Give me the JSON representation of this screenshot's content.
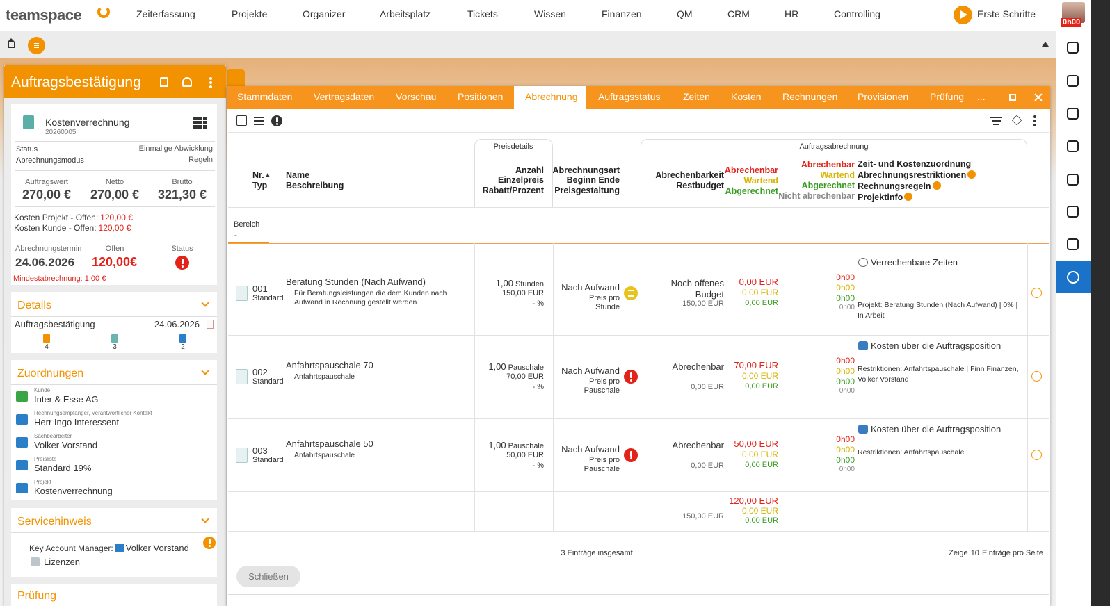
{
  "topnav": {
    "logo": "teamspace",
    "items": [
      "Zeiterfassung",
      "Projekte",
      "Organizer",
      "Arbeitsplatz",
      "Tickets",
      "Wissen",
      "Finanzen",
      "QM",
      "CRM",
      "HR",
      "Controlling"
    ],
    "start": "Erste Schritte",
    "timer": "0h00"
  },
  "left": {
    "title": "Auftragsbestätigung",
    "card": {
      "name": "Kostenverrechnung",
      "number": "20260005",
      "status_label": "Status",
      "status_value": "Einmalige Abwicklung",
      "mode_label": "Abrechnungsmodus",
      "mode_value": "Regeln",
      "amounts": [
        {
          "label": "Auftragswert",
          "value": "270,00 €"
        },
        {
          "label": "Netto",
          "value": "270,00 €"
        },
        {
          "label": "Brutto",
          "value": "321,30 €"
        }
      ],
      "costs_project_label": "Kosten Projekt - Offen:",
      "costs_project_value": "120,00 €",
      "costs_customer_label": "Kosten Kunde - Offen:",
      "costs_customer_value": "120,00 €",
      "term_label": "Abrechnungstermin",
      "term_value": "24.06.2026",
      "open_label": "Offen",
      "open_value": "120,00€",
      "state_label": "Status",
      "minimum": "Mindestabrechnung: 1,00 €"
    },
    "details": {
      "title": "Details",
      "doc": "Auftragsbestätigung",
      "date": "24.06.2026",
      "counts": [
        "4",
        "3",
        "2"
      ]
    },
    "assignments": {
      "title": "Zuordnungen",
      "items": [
        {
          "label": "Kunde",
          "value": "Inter & Esse AG"
        },
        {
          "label": "Rechnungsempfänger, Verantwortlicher Kontakt",
          "value": "Herr Ingo Interessent"
        },
        {
          "label": "Sachbearbeiter",
          "value": "Volker Vorstand"
        },
        {
          "label": "Preisliste",
          "value": "Standard 19%"
        },
        {
          "label": "Projekt",
          "value": "Kostenverrechnung"
        }
      ]
    },
    "service": {
      "title": "Servicehinweis",
      "kam_label": "Key Account Manager:",
      "kam_value": "Volker Vorstand",
      "licenses": "Lizenzen"
    },
    "next": "Prüfung"
  },
  "tabs": {
    "items": [
      "Stammdaten",
      "Vertragsdaten",
      "Vorschau",
      "Positionen",
      "Abrechnung",
      "Auftragsstatus",
      "Zeiten",
      "Kosten",
      "Rechnungen",
      "Provisionen",
      "Prüfung"
    ],
    "active": 4,
    "more": "..."
  },
  "table": {
    "header": {
      "nr": "Nr.",
      "typ": "Typ",
      "name": "Name",
      "desc": "Beschreibung",
      "price_group": "Preisdetails",
      "price_cols": [
        "Anzahl",
        "Einzelpreis",
        "Rabatt/Prozent"
      ],
      "billing_cols": [
        "Abrechnungsart",
        "Beginn Ende",
        "Preisgestaltung"
      ],
      "billing_group": "Auftragsabrechnung",
      "billability_cols": [
        "Abrechenbarkeit",
        "Restbudget"
      ],
      "amount_states": [
        "Abrechenbar",
        "Wartend",
        "Abgerechnet"
      ],
      "time_states": [
        "Abrechenbar",
        "Wartend",
        "Abgerechnet",
        "Nicht abrechenbar"
      ],
      "alloc_cols": [
        "Zeit- und Kostenzuordnung",
        "Abrechnungsrestriktionen",
        "Rechnungsregeln",
        "Projektinfo"
      ]
    },
    "filter": {
      "label": "Bereich",
      "value": "-"
    },
    "rows": [
      {
        "nr": "001",
        "typ": "Standard",
        "name": "Beratung Stunden (Nach Aufwand)",
        "desc": "Für Beratungsleistungen die dem Kunden nach Aufwand in Rechnung gestellt werden.",
        "qty": "1,00",
        "unit": "Stunden",
        "price": "150,00 EUR",
        "discount": "- %",
        "billing": "Nach Aufwand",
        "pricing": "Preis pro Stunde",
        "billability": "Noch offenes Budget",
        "budget": "150,00 EUR",
        "amounts": [
          "0,00 EUR",
          "0,00 EUR",
          "0,00 EUR"
        ],
        "times": [
          "0h00",
          "0h00",
          "0h00",
          "0h00"
        ],
        "alloc": "Verrechenbare Zeiten",
        "info": "Projekt: Beratung Stunden (Nach Aufwand) | 0% | In Arbeit"
      },
      {
        "nr": "002",
        "typ": "Standard",
        "name": "Anfahrtspauschale 70",
        "desc": "Anfahrtspauschale",
        "qty": "1,00",
        "unit": "Pauschale",
        "price": "70,00 EUR",
        "discount": "- %",
        "billing": "Nach Aufwand",
        "pricing": "Preis pro Pauschale",
        "billability": "Abrechenbar",
        "budget": "0,00 EUR",
        "amounts": [
          "70,00 EUR",
          "0,00 EUR",
          "0,00 EUR"
        ],
        "times": [
          "0h00",
          "0h00",
          "0h00",
          "0h00"
        ],
        "alloc": "Kosten über die Auftragsposition",
        "info": "Restriktionen: Anfahrtspauschale | Finn Finanzen, Volker Vorstand"
      },
      {
        "nr": "003",
        "typ": "Standard",
        "name": "Anfahrtspauschale 50",
        "desc": "Anfahrtspauschale",
        "qty": "1,00",
        "unit": "Pauschale",
        "price": "50,00 EUR",
        "discount": "- %",
        "billing": "Nach Aufwand",
        "pricing": "Preis pro Pauschale",
        "billability": "Abrechenbar",
        "budget": "0,00 EUR",
        "amounts": [
          "50,00 EUR",
          "0,00 EUR",
          "0,00 EUR"
        ],
        "times": [
          "0h00",
          "0h00",
          "0h00",
          "0h00"
        ],
        "alloc": "Kosten über die Auftragsposition",
        "info": "Restriktionen: Anfahrtspauschale"
      }
    ],
    "total": {
      "budget": "150,00 EUR",
      "amounts": [
        "120,00 EUR",
        "0,00 EUR",
        "0,00 EUR"
      ]
    },
    "footer": {
      "count": "3 Einträge insgesamt",
      "show": "Zeige",
      "per_page": "10",
      "per_page_suffix": "Einträge pro Seite"
    },
    "close": "Schließen"
  }
}
